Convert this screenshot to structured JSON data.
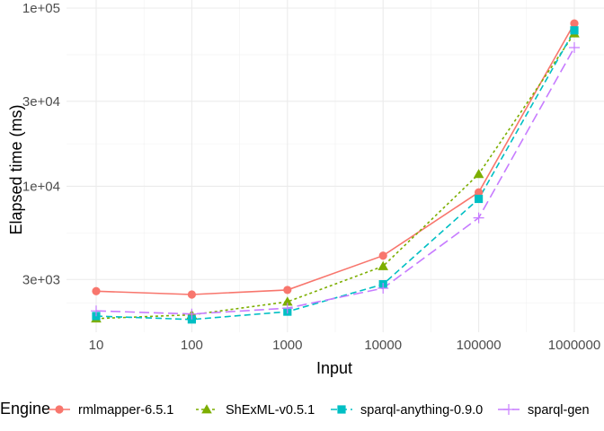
{
  "chart_data": {
    "type": "line",
    "title": "",
    "xlabel": "Input",
    "ylabel": "Elapsed time (ms)",
    "x_scale": "log",
    "y_scale": "log",
    "grid": true,
    "legend_placement": "bottom",
    "legend_title": "Engine",
    "categories": [
      "10",
      "100",
      "1000",
      "10000",
      "100000",
      "1000000"
    ],
    "y_ticks": [
      {
        "value": 3000,
        "label": "3e+03"
      },
      {
        "value": 10000,
        "label": "1e+04"
      },
      {
        "value": 30000,
        "label": "3e+04"
      },
      {
        "value": 100000,
        "label": "1e+05"
      }
    ],
    "ylim": [
      1500,
      100000
    ],
    "series": [
      {
        "name": "rmlmapper-6.5.1",
        "color": "#F8766D",
        "marker": "circle",
        "dash": "solid",
        "values": [
          2580,
          2470,
          2620,
          4080,
          9250,
          82000
        ]
      },
      {
        "name": "ShExML-v0.5.1",
        "color": "#7CAE00",
        "marker": "triangle",
        "dash": "dotted",
        "values": [
          1810,
          1900,
          2250,
          3560,
          11700,
          72000
        ]
      },
      {
        "name": "sparql-anything-0.9.0",
        "color": "#00BFC4",
        "marker": "square",
        "dash": "dashed",
        "values": [
          1870,
          1790,
          1980,
          2820,
          8500,
          75000
        ]
      },
      {
        "name": "sparql-gen",
        "color": "#C77CFF",
        "marker": "plus",
        "dash": "longdash",
        "values": [
          2000,
          1920,
          2070,
          2680,
          6650,
          60000
        ]
      }
    ]
  }
}
